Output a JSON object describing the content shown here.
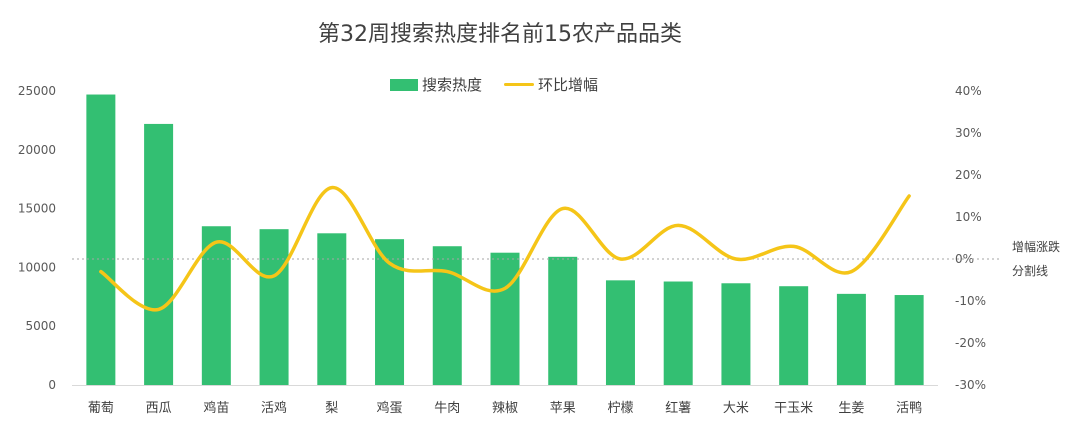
{
  "chart_data": {
    "type": "bar",
    "title": "第32周搜索热度排名前15农产品品类",
    "categories": [
      "葡萄",
      "西瓜",
      "鸡苗",
      "活鸡",
      "梨",
      "鸡蛋",
      "牛肉",
      "辣椒",
      "苹果",
      "柠檬",
      "红薯",
      "大米",
      "干玉米",
      "生姜",
      "活鸭"
    ],
    "series": [
      {
        "name": "搜索热度",
        "type": "bar",
        "axis": "left",
        "color": "#33BF72",
        "values": [
          24700,
          22200,
          13500,
          13250,
          12900,
          12400,
          11800,
          11250,
          10900,
          8900,
          8800,
          8650,
          8400,
          7750,
          7650
        ]
      },
      {
        "name": "环比增幅",
        "type": "line",
        "smooth": true,
        "axis": "right",
        "color": "#F5C518",
        "unit": "%",
        "values": [
          -3,
          -12,
          4,
          -4,
          17,
          -1,
          -3,
          -7,
          12,
          0,
          8,
          0,
          3,
          -3,
          15
        ]
      }
    ],
    "y_left": {
      "lim": [
        0,
        25000
      ],
      "ticks": [
        "0",
        "5000",
        "10000",
        "15000",
        "20000",
        "25000"
      ]
    },
    "y_right": {
      "lim": [
        -30,
        40
      ],
      "ticks": [
        "-30%",
        "-20%",
        "-10%",
        "0%",
        "10%",
        "20%",
        "30%",
        "40%"
      ]
    },
    "reference_line": {
      "value": 0,
      "axis": "right",
      "style": "dotted",
      "label_lines": [
        "增幅涨跌",
        "分割线"
      ]
    },
    "grid": false,
    "legend_position": "top-center"
  }
}
